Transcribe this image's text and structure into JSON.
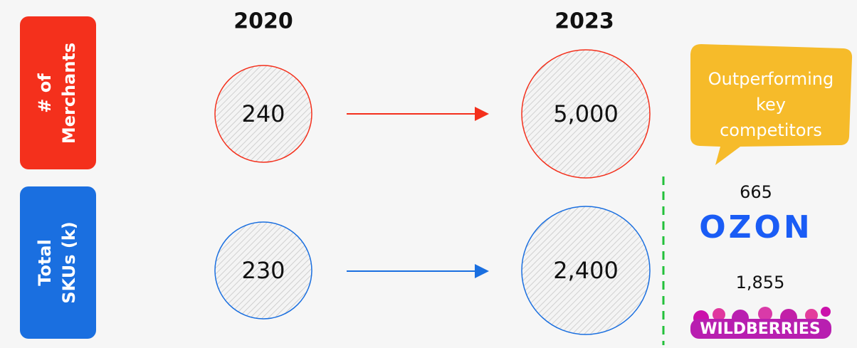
{
  "years": [
    "2020",
    "2023"
  ],
  "rows": [
    {
      "label_lines": [
        "# of",
        "Merchants"
      ],
      "values": [
        "240",
        "5,000"
      ]
    },
    {
      "label_lines": [
        "Total",
        "SKUs (k)"
      ],
      "values": [
        "230",
        "2,400"
      ]
    }
  ],
  "callout_lines": [
    "Outperforming",
    "key",
    "competitors"
  ],
  "competitors": [
    {
      "value": "665",
      "name": "OZON"
    },
    {
      "value": "1,855",
      "name": "WILDBERRIES"
    }
  ]
}
